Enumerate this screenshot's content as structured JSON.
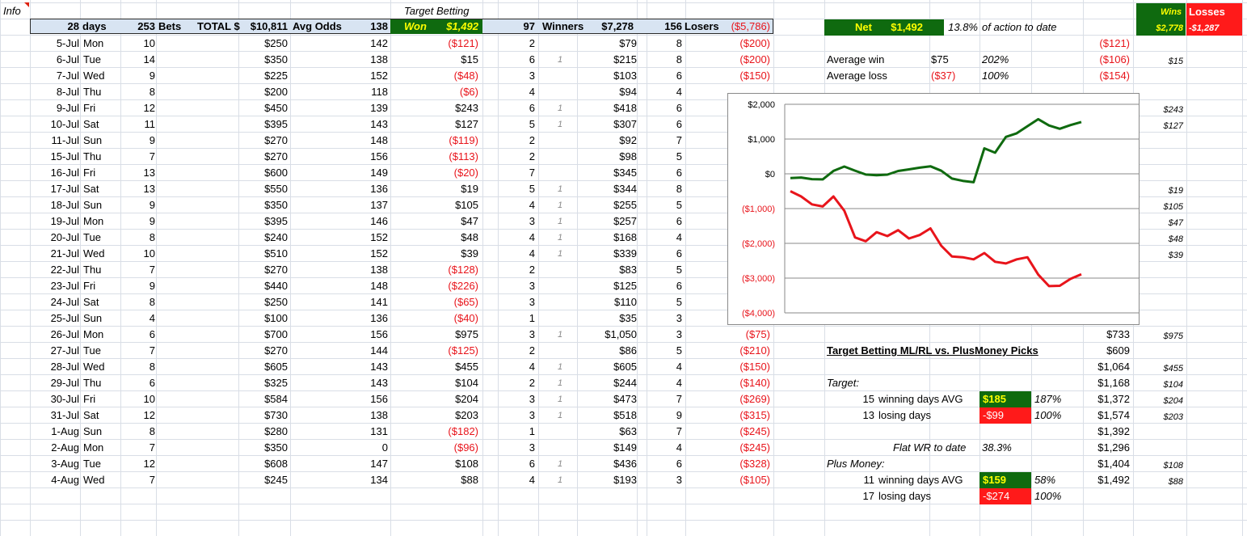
{
  "corner_label": "Info",
  "header": {
    "days_count": "28",
    "days_label": "days",
    "bets_count": "253",
    "bets_label": "Bets",
    "total_label": "TOTAL $",
    "total_value": "$10,811",
    "avg_odds_label": "Avg Odds",
    "avg_odds_value": "138",
    "target_betting_title": "Target Betting",
    "won_label": "Won",
    "won_value": "$1,492",
    "winners_count": "97",
    "winners_label": "Winners",
    "winners_value": "$7,278",
    "losers_count": "156",
    "losers_label": "Losers",
    "losers_value": "($5,786)"
  },
  "rows": [
    {
      "date": "5-Jul",
      "dow": "Mon",
      "bets": "10",
      "total": "$250",
      "odds": "142",
      "won": "($121)",
      "won_neg": true,
      "w": "2",
      "flag": "",
      "wamt": "$79",
      "l": "8",
      "lamt": "($200)"
    },
    {
      "date": "6-Jul",
      "dow": "Tue",
      "bets": "14",
      "total": "$350",
      "odds": "138",
      "won": "$15",
      "won_neg": false,
      "w": "6",
      "flag": "1",
      "wamt": "$215",
      "l": "8",
      "lamt": "($200)"
    },
    {
      "date": "7-Jul",
      "dow": "Wed",
      "bets": "9",
      "total": "$225",
      "odds": "152",
      "won": "($48)",
      "won_neg": true,
      "w": "3",
      "flag": "",
      "wamt": "$103",
      "l": "6",
      "lamt": "($150)"
    },
    {
      "date": "8-Jul",
      "dow": "Thu",
      "bets": "8",
      "total": "$200",
      "odds": "118",
      "won": "($6)",
      "won_neg": true,
      "w": "4",
      "flag": "",
      "wamt": "$94",
      "l": "4",
      "lamt": ""
    },
    {
      "date": "9-Jul",
      "dow": "Fri",
      "bets": "12",
      "total": "$450",
      "odds": "139",
      "won": "$243",
      "won_neg": false,
      "w": "6",
      "flag": "1",
      "wamt": "$418",
      "l": "6",
      "lamt": ""
    },
    {
      "date": "10-Jul",
      "dow": "Sat",
      "bets": "11",
      "total": "$395",
      "odds": "143",
      "won": "$127",
      "won_neg": false,
      "w": "5",
      "flag": "1",
      "wamt": "$307",
      "l": "6",
      "lamt": ""
    },
    {
      "date": "11-Jul",
      "dow": "Sun",
      "bets": "9",
      "total": "$270",
      "odds": "148",
      "won": "($119)",
      "won_neg": true,
      "w": "2",
      "flag": "",
      "wamt": "$92",
      "l": "7",
      "lamt": ""
    },
    {
      "date": "15-Jul",
      "dow": "Thu",
      "bets": "7",
      "total": "$270",
      "odds": "156",
      "won": "($113)",
      "won_neg": true,
      "w": "2",
      "flag": "",
      "wamt": "$98",
      "l": "5",
      "lamt": ""
    },
    {
      "date": "16-Jul",
      "dow": "Fri",
      "bets": "13",
      "total": "$600",
      "odds": "149",
      "won": "($20)",
      "won_neg": true,
      "w": "7",
      "flag": "",
      "wamt": "$345",
      "l": "6",
      "lamt": ""
    },
    {
      "date": "17-Jul",
      "dow": "Sat",
      "bets": "13",
      "total": "$550",
      "odds": "136",
      "won": "$19",
      "won_neg": false,
      "w": "5",
      "flag": "1",
      "wamt": "$344",
      "l": "8",
      "lamt": ""
    },
    {
      "date": "18-Jul",
      "dow": "Sun",
      "bets": "9",
      "total": "$350",
      "odds": "137",
      "won": "$105",
      "won_neg": false,
      "w": "4",
      "flag": "1",
      "wamt": "$255",
      "l": "5",
      "lamt": ""
    },
    {
      "date": "19-Jul",
      "dow": "Mon",
      "bets": "9",
      "total": "$395",
      "odds": "146",
      "won": "$47",
      "won_neg": false,
      "w": "3",
      "flag": "1",
      "wamt": "$257",
      "l": "6",
      "lamt": ""
    },
    {
      "date": "20-Jul",
      "dow": "Tue",
      "bets": "8",
      "total": "$240",
      "odds": "152",
      "won": "$48",
      "won_neg": false,
      "w": "4",
      "flag": "1",
      "wamt": "$168",
      "l": "4",
      "lamt": ""
    },
    {
      "date": "21-Jul",
      "dow": "Wed",
      "bets": "10",
      "total": "$510",
      "odds": "152",
      "won": "$39",
      "won_neg": false,
      "w": "4",
      "flag": "1",
      "wamt": "$339",
      "l": "6",
      "lamt": ""
    },
    {
      "date": "22-Jul",
      "dow": "Thu",
      "bets": "7",
      "total": "$270",
      "odds": "138",
      "won": "($128)",
      "won_neg": true,
      "w": "2",
      "flag": "",
      "wamt": "$83",
      "l": "5",
      "lamt": ""
    },
    {
      "date": "23-Jul",
      "dow": "Fri",
      "bets": "9",
      "total": "$440",
      "odds": "148",
      "won": "($226)",
      "won_neg": true,
      "w": "3",
      "flag": "",
      "wamt": "$125",
      "l": "6",
      "lamt": ""
    },
    {
      "date": "24-Jul",
      "dow": "Sat",
      "bets": "8",
      "total": "$250",
      "odds": "141",
      "won": "($65)",
      "won_neg": true,
      "w": "3",
      "flag": "",
      "wamt": "$110",
      "l": "5",
      "lamt": ""
    },
    {
      "date": "25-Jul",
      "dow": "Sun",
      "bets": "4",
      "total": "$100",
      "odds": "136",
      "won": "($40)",
      "won_neg": true,
      "w": "1",
      "flag": "",
      "wamt": "$35",
      "l": "3",
      "lamt": ""
    },
    {
      "date": "26-Jul",
      "dow": "Mon",
      "bets": "6",
      "total": "$700",
      "odds": "156",
      "won": "$975",
      "won_neg": false,
      "w": "3",
      "flag": "1",
      "wamt": "$1,050",
      "l": "3",
      "lamt": "($75)"
    },
    {
      "date": "27-Jul",
      "dow": "Tue",
      "bets": "7",
      "total": "$270",
      "odds": "144",
      "won": "($125)",
      "won_neg": true,
      "w": "2",
      "flag": "",
      "wamt": "$86",
      "l": "5",
      "lamt": "($210)"
    },
    {
      "date": "28-Jul",
      "dow": "Wed",
      "bets": "8",
      "total": "$605",
      "odds": "143",
      "won": "$455",
      "won_neg": false,
      "w": "4",
      "flag": "1",
      "wamt": "$605",
      "l": "4",
      "lamt": "($150)"
    },
    {
      "date": "29-Jul",
      "dow": "Thu",
      "bets": "6",
      "total": "$325",
      "odds": "143",
      "won": "$104",
      "won_neg": false,
      "w": "2",
      "flag": "1",
      "wamt": "$244",
      "l": "4",
      "lamt": "($140)"
    },
    {
      "date": "30-Jul",
      "dow": "Fri",
      "bets": "10",
      "total": "$584",
      "odds": "156",
      "won": "$204",
      "won_neg": false,
      "w": "3",
      "flag": "1",
      "wamt": "$473",
      "l": "7",
      "lamt": "($269)"
    },
    {
      "date": "31-Jul",
      "dow": "Sat",
      "bets": "12",
      "total": "$730",
      "odds": "138",
      "won": "$203",
      "won_neg": false,
      "w": "3",
      "flag": "1",
      "wamt": "$518",
      "l": "9",
      "lamt": "($315)"
    },
    {
      "date": "1-Aug",
      "dow": "Sun",
      "bets": "8",
      "total": "$280",
      "odds": "131",
      "won": "($182)",
      "won_neg": true,
      "w": "1",
      "flag": "",
      "wamt": "$63",
      "l": "7",
      "lamt": "($245)"
    },
    {
      "date": "2-Aug",
      "dow": "Mon",
      "bets": "7",
      "total": "$350",
      "odds": "0",
      "won": "($96)",
      "won_neg": true,
      "w": "3",
      "flag": "",
      "wamt": "$149",
      "l": "4",
      "lamt": "($245)"
    },
    {
      "date": "3-Aug",
      "dow": "Tue",
      "bets": "12",
      "total": "$608",
      "odds": "147",
      "won": "$108",
      "won_neg": false,
      "w": "6",
      "flag": "1",
      "wamt": "$436",
      "l": "6",
      "lamt": "($328)"
    },
    {
      "date": "4-Aug",
      "dow": "Wed",
      "bets": "7",
      "total": "$245",
      "odds": "134",
      "won": "$88",
      "won_neg": false,
      "w": "4",
      "flag": "1",
      "wamt": "$193",
      "l": "3",
      "lamt": "($105)"
    }
  ],
  "net_panel": {
    "net_label": "Net",
    "net_value": "$1,492",
    "pct_value": "13.8%",
    "pct_label": "of action to date",
    "avg_win_label": "Average win",
    "avg_win_value": "$75",
    "avg_win_pct": "202%",
    "avg_loss_label": "Average loss",
    "avg_loss_value": "($37)",
    "avg_loss_pct": "100%"
  },
  "wins_losses": {
    "wins_label": "Wins",
    "losses_label": "Losses",
    "wins_total": "$2,778",
    "losses_total": "-$1,287"
  },
  "running_col": [
    {
      "row": 0,
      "v": "($121)",
      "neg": true
    },
    {
      "row": 1,
      "v": "($106)",
      "neg": true
    },
    {
      "row": 2,
      "v": "($154)",
      "neg": true
    },
    {
      "row": 18,
      "v": "$733",
      "neg": false
    },
    {
      "row": 19,
      "v": "$609",
      "neg": false
    },
    {
      "row": 20,
      "v": "$1,064",
      "neg": false
    },
    {
      "row": 21,
      "v": "$1,168",
      "neg": false
    },
    {
      "row": 22,
      "v": "$1,372",
      "neg": false
    },
    {
      "row": 23,
      "v": "$1,574",
      "neg": false
    },
    {
      "row": 24,
      "v": "$1,392",
      "neg": false
    },
    {
      "row": 25,
      "v": "$1,296",
      "neg": false
    },
    {
      "row": 26,
      "v": "$1,404",
      "neg": false
    },
    {
      "row": 27,
      "v": "$1,492",
      "neg": false
    }
  ],
  "wins_col": [
    {
      "row": 1,
      "v": "$15"
    },
    {
      "row": 4,
      "v": "$243"
    },
    {
      "row": 5,
      "v": "$127"
    },
    {
      "row": 9,
      "v": "$19"
    },
    {
      "row": 10,
      "v": "$105"
    },
    {
      "row": 11,
      "v": "$47"
    },
    {
      "row": 12,
      "v": "$48"
    },
    {
      "row": 13,
      "v": "$39"
    },
    {
      "row": 18,
      "v": "$975"
    },
    {
      "row": 20,
      "v": "$455"
    },
    {
      "row": 21,
      "v": "$104"
    },
    {
      "row": 22,
      "v": "$204"
    },
    {
      "row": 23,
      "v": "$203"
    },
    {
      "row": 26,
      "v": "$108"
    },
    {
      "row": 27,
      "v": "$88"
    }
  ],
  "comparison": {
    "title": "Target Betting ML/RL vs. PlusMoney Picks",
    "target_label": "Target:",
    "t_win_days": "15",
    "t_win_label": "winning days  AVG",
    "t_win_avg": "$185",
    "t_win_pct": "187%",
    "t_lose_days": "13",
    "t_lose_label": "losing days",
    "t_lose_avg": "-$99",
    "t_lose_pct": "100%",
    "flat_label": "Flat WR to date",
    "flat_value": "38.3%",
    "plus_label": "Plus Money:",
    "p_win_days": "11",
    "p_win_label": "winning days  AVG",
    "p_win_avg": "$159",
    "p_win_pct": "58%",
    "p_lose_days": "17",
    "p_lose_label": "losing days",
    "p_lose_avg": "-$274",
    "p_lose_pct": "100%"
  },
  "chart_data": {
    "type": "line",
    "ylim": [
      -4000,
      2000
    ],
    "yticks": [
      "$2,000",
      "$1,000",
      "$0",
      "($1,000)",
      "($2,000)",
      "($3,000)",
      "($4,000)"
    ],
    "ytick_values": [
      2000,
      1000,
      0,
      -1000,
      -2000,
      -3000,
      -4000
    ],
    "series": [
      {
        "color": "#0f6a0f",
        "values": [
          -121,
          -106,
          -154,
          -160,
          83,
          210,
          91,
          -22,
          -42,
          -23,
          82,
          129,
          177,
          216,
          88,
          -138,
          -203,
          -243,
          732,
          607,
          1062,
          1166,
          1370,
          1573,
          1391,
          1295,
          1403,
          1491
        ]
      },
      {
        "color": "#e8141b",
        "values": [
          -500,
          -650,
          -880,
          -940,
          -650,
          -1060,
          -1830,
          -1940,
          -1680,
          -1790,
          -1620,
          -1860,
          -1760,
          -1570,
          -2070,
          -2380,
          -2400,
          -2460,
          -2280,
          -2530,
          -2580,
          -2460,
          -2400,
          -2900,
          -3230,
          -3220,
          -3020,
          -2890
        ]
      }
    ]
  }
}
